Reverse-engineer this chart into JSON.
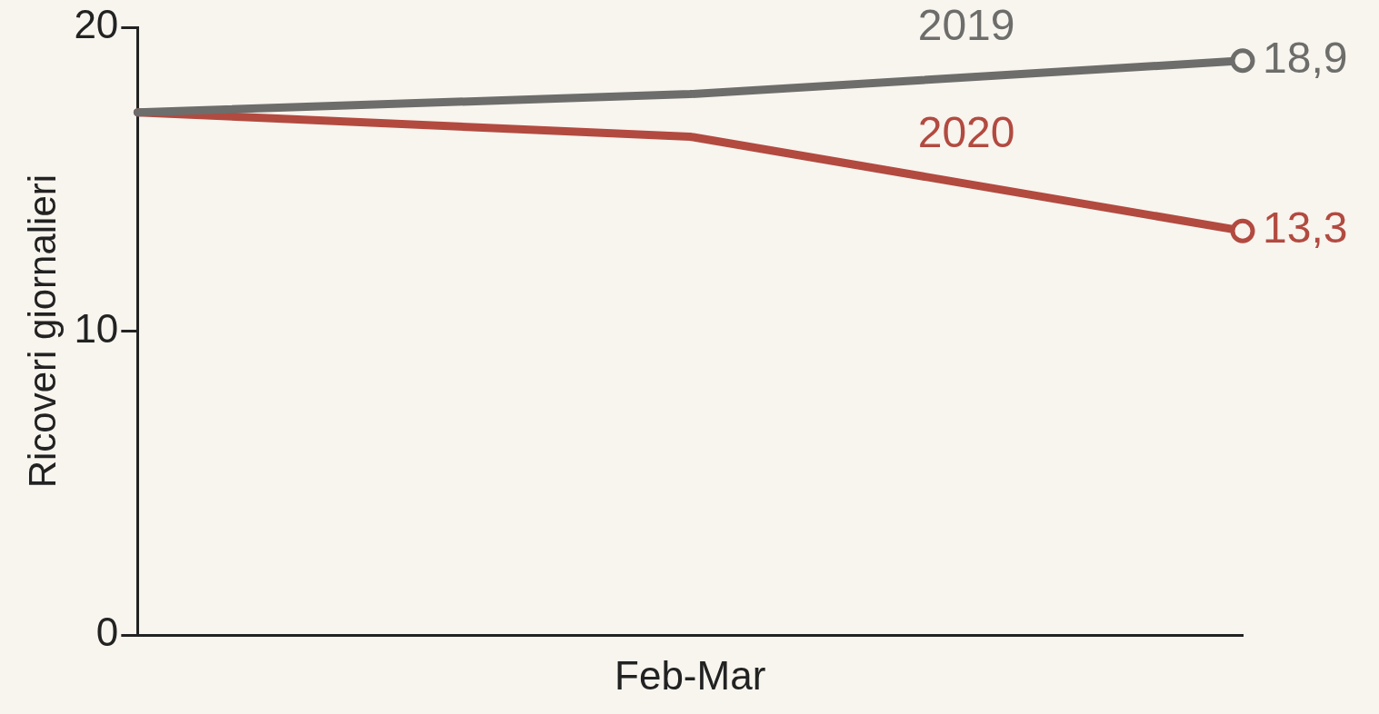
{
  "chart_data": {
    "type": "line",
    "categories": [
      null,
      "Feb-Mar",
      null
    ],
    "ylabel": "Ricoveri giornalieri",
    "ylim": [
      0,
      20
    ],
    "yticks": [
      0,
      10,
      20
    ],
    "series": [
      {
        "name": "2019",
        "color": "#6d6d6b",
        "values": [
          17.2,
          17.8,
          18.9
        ],
        "value_labels": [
          null,
          null,
          "18,9"
        ]
      },
      {
        "name": "2020",
        "color": "#b24a40",
        "values": [
          17.2,
          16.4,
          13.3
        ],
        "value_labels": [
          null,
          null,
          "13,3"
        ]
      }
    ],
    "line_style": "solid",
    "grid": false,
    "legend": false
  }
}
